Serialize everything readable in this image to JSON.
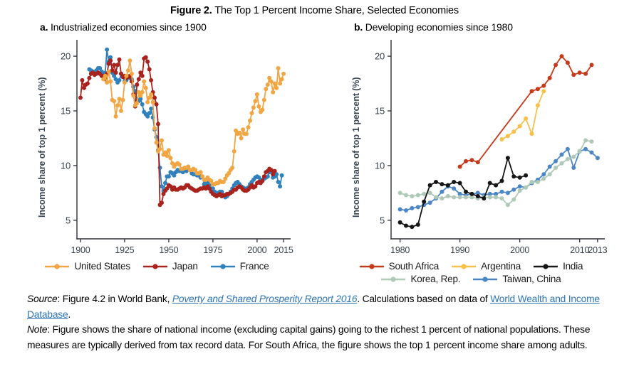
{
  "figure": {
    "title_segments": [
      {
        "text": "Figure 2.",
        "bold": true
      },
      {
        "text": " The Top 1 Percent Income Share, Selected Economies"
      }
    ]
  },
  "footer": {
    "link_color": "#2E75B6",
    "source_segments": [
      {
        "text": "Source",
        "italic": true
      },
      {
        "text": ": Figure 4.2 in World Bank, "
      },
      {
        "text": "Poverty and Shared Prosperity Report 2016",
        "link": true,
        "italic": true
      },
      {
        "text": ". Calculations based on data of "
      },
      {
        "text": "World Wealth and Income Database",
        "link": true
      },
      {
        "text": "."
      }
    ],
    "note_segments": [
      {
        "text": "Note",
        "italic": true
      },
      {
        "text": ": Figure shows the share of national income (excluding capital gains) going to the richest 1 percent of national populations. These measures are typically derived from tax record data. For South Africa, the figure shows the top 1 percent income share among adults."
      }
    ]
  },
  "chart_data": [
    {
      "id": "a",
      "type": "line",
      "title_segments": [
        {
          "text": "a.",
          "bold": true
        },
        {
          "text": " Industrialized economies since 1900"
        }
      ],
      "ylabel": "Income share of top 1 percent (%)",
      "xlabel": "",
      "xlim": [
        1898,
        2019
      ],
      "ylim": [
        3.3,
        21.5
      ],
      "xticks": [
        1900,
        1925,
        1950,
        1975,
        2000,
        2015
      ],
      "yticks": [
        5,
        10,
        15,
        20
      ],
      "grid": false,
      "legend_position": "bottom",
      "legend_rows": [
        [
          "United States",
          "Japan",
          "France"
        ]
      ],
      "series": [
        {
          "name": "United States",
          "color": "#F0A643",
          "from": 1913,
          "values": [
            17.9,
            18.2,
            17.6,
            18.6,
            17.7,
            16.0,
            15.9,
            14.5,
            15.5,
            16.1,
            15.0,
            16.0,
            17.6,
            18.2,
            18.7,
            19.6,
            18.4,
            16.4,
            15.5,
            15.7,
            16.7,
            16.4,
            16.7,
            17.7,
            17.1,
            15.8,
            16.2,
            16.5,
            15.8,
            13.4,
            12.1,
            11.3,
            11.5,
            12.3,
            11.0,
            11.2,
            10.9,
            11.4,
            10.7,
            10.2,
            9.9,
            10.1,
            10.2,
            10.1,
            9.7,
            9.7,
            9.8,
            9.8,
            9.9,
            9.6,
            9.6,
            9.7,
            9.6,
            9.3,
            9.3,
            9.4,
            9.0,
            8.7,
            8.7,
            8.9,
            8.7,
            8.6,
            8.3,
            8.3,
            8.4,
            8.4,
            8.6,
            8.5,
            8.5,
            8.8,
            9.1,
            9.3,
            9.6,
            9.8,
            11.3,
            13.2,
            12.9,
            13.0,
            12.5,
            13.3,
            12.9,
            12.9,
            13.5,
            14.1,
            14.8,
            15.3,
            15.9,
            16.5,
            15.4,
            14.9,
            15.1,
            16.0,
            17.0,
            17.4,
            18.0,
            17.7,
            16.7,
            17.5,
            17.1,
            18.9,
            17.5,
            17.9,
            18.4
          ]
        },
        {
          "name": "Japan",
          "color": "#A8231E",
          "from": 1900,
          "values": [
            16.2,
            17.8,
            17.1,
            17.4,
            17.5,
            18.0,
            18.4,
            18.5,
            18.3,
            18.4,
            18.5,
            18.4,
            18.2,
            18.2,
            17.9,
            18.4,
            19.3,
            19.6,
            18.7,
            19.2,
            18.5,
            19.2,
            19.7,
            18.4,
            18.1,
            18.2,
            18.0,
            18.1,
            18.2,
            17.7,
            16.5,
            15.4,
            17.4,
            17.9,
            18.5,
            18.2,
            19.8,
            19.9,
            19.5,
            18.8,
            17.8,
            16.7,
            16.2,
            15.6,
            13.8,
            6.4,
            6.6,
            7.4,
            7.7,
            7.9,
            8.2,
            8.1,
            7.8,
            8.0,
            7.8,
            7.8,
            7.9,
            8.0,
            7.9,
            8.0,
            8.2,
            8.2,
            8.0,
            7.9,
            7.8,
            7.7,
            7.7,
            7.8,
            7.9,
            7.9,
            8.0,
            7.9,
            8.1,
            7.9,
            7.6,
            7.4,
            7.3,
            7.2,
            7.3,
            7.4,
            7.2,
            7.3,
            7.3,
            7.4,
            7.4,
            7.5,
            7.6,
            7.8,
            7.8,
            8.0,
            8.1,
            8.0,
            7.8,
            7.7,
            7.7,
            7.8,
            8.0,
            8.2,
            8.0,
            8.1,
            8.4,
            8.5,
            8.4,
            8.6,
            9.0,
            9.4,
            9.5,
            9.7,
            9.6,
            9.2,
            9.5
          ]
        },
        {
          "name": "France",
          "color": "#3181BD",
          "from": 1905,
          "values": [
            18.8,
            18.7,
            18.6,
            18.5,
            18.7,
            18.9,
            18.9,
            18.6,
            18.3,
            18.5,
            20.6,
            19.5,
            19.9,
            18.5,
            18.2,
            17.9,
            17.6,
            17.8,
            18.4,
            18.1,
            17.7,
            17.8,
            18.1,
            18.0,
            17.9,
            17.2,
            16.8,
            16.0,
            15.9,
            16.1,
            15.6,
            14.9,
            14.7,
            14.5,
            14.8,
            15.2,
            14.4,
            13.3,
            12.6,
            11.4,
            9.8,
            8.1,
            7.7,
            8.4,
            9.0,
            9.0,
            9.4,
            9.3,
            9.1,
            9.4,
            9.6,
            9.5,
            9.6,
            9.4,
            9.6,
            9.5,
            9.9,
            9.6,
            9.3,
            9.2,
            9.2,
            9.1,
            9.1,
            8.9,
            9.0,
            8.3,
            8.4,
            8.4,
            8.2,
            7.9,
            7.9,
            7.6,
            7.4,
            7.5,
            7.6,
            7.6,
            7.3,
            7.1,
            7.2,
            7.4,
            7.6,
            7.9,
            8.2,
            8.4,
            8.5,
            8.3,
            8.1,
            8.0,
            7.9,
            7.9,
            8.0,
            8.3,
            8.5,
            8.7,
            8.9,
            9.0,
            8.9,
            8.7,
            8.6,
            8.8,
            8.9,
            9.0,
            9.4,
            9.5,
            8.9,
            9.0,
            9.2,
            8.5,
            8.1,
            9.1
          ]
        }
      ]
    },
    {
      "id": "b",
      "type": "line",
      "title_segments": [
        {
          "text": "b.",
          "bold": true
        },
        {
          "text": " Developing economies since 1980"
        }
      ],
      "ylabel": "Income share of top 1 percent (%)",
      "xlabel": "",
      "xlim": [
        1978.5,
        2014.2
      ],
      "ylim": [
        3.3,
        21.5
      ],
      "xticks": [
        1980,
        1990,
        2000,
        2010,
        2013
      ],
      "yticks": [
        5,
        10,
        15,
        20
      ],
      "grid": false,
      "legend_position": "bottom",
      "legend_rows": [
        [
          "South Africa",
          "Argentina",
          "India"
        ],
        [
          "Korea, Rep.",
          "Taiwan, China"
        ]
      ],
      "series": [
        {
          "name": "South Africa",
          "color": "#C63A1C",
          "x": [
            1990,
            1991,
            1992,
            1993,
            2002,
            2003,
            2004,
            2005,
            2006,
            2007,
            2008,
            2009,
            2010,
            2011,
            2012
          ],
          "values": [
            9.9,
            10.4,
            10.5,
            10.3,
            16.8,
            17.0,
            17.3,
            18.0,
            19.2,
            20.0,
            19.4,
            18.3,
            18.5,
            18.4,
            19.2
          ]
        },
        {
          "name": "Argentina",
          "color": "#F6C04A",
          "from": 1997,
          "values": [
            12.4,
            12.7,
            13.1,
            13.6,
            14.3,
            12.9,
            15.5,
            16.8
          ]
        },
        {
          "name": "India",
          "color": "#161616",
          "from": 1980,
          "values": [
            4.8,
            4.5,
            4.4,
            4.6,
            6.7,
            8.2,
            8.5,
            8.3,
            8.2,
            8.5,
            8.4,
            7.6,
            7.4,
            7.2,
            7.0,
            8.4,
            8.2,
            8.6,
            10.7,
            9.0,
            8.9,
            9.1
          ]
        },
        {
          "name": "Korea, Rep.",
          "color": "#AFC9B9",
          "from": 1980,
          "values": [
            7.5,
            7.3,
            7.2,
            7.3,
            7.4,
            7.5,
            7.1,
            7.0,
            7.2,
            7.1,
            7.1,
            7.1,
            7.1,
            7.0,
            7.1,
            7.1,
            7.1,
            7.0,
            6.4,
            6.9,
            7.7,
            8.0,
            8.5,
            8.5,
            8.8,
            9.2,
            9.8,
            10.2,
            10.6,
            10.8,
            11.3,
            12.3,
            12.2
          ]
        },
        {
          "name": "Taiwan, China",
          "color": "#4C86C4",
          "from": 1980,
          "values": [
            6.0,
            5.9,
            6.1,
            6.2,
            6.4,
            6.6,
            7.0,
            7.6,
            8.1,
            7.9,
            7.4,
            7.3,
            7.4,
            7.5,
            7.3,
            7.4,
            7.4,
            7.6,
            7.5,
            7.8,
            8.1,
            8.0,
            8.4,
            8.7,
            9.2,
            9.9,
            10.4,
            11.0,
            11.5,
            9.8,
            11.3,
            11.5,
            11.2,
            10.7
          ]
        }
      ]
    }
  ]
}
